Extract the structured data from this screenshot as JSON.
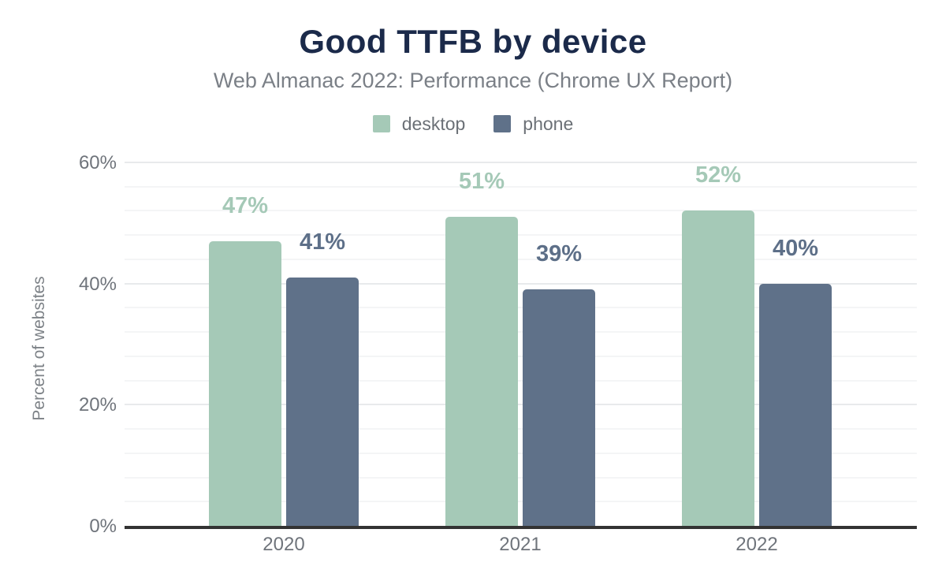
{
  "chart_data": {
    "type": "bar",
    "title": "Good TTFB by device",
    "subtitle": "Web Almanac 2022: Performance (Chrome UX Report)",
    "categories": [
      "2020",
      "2021",
      "2022"
    ],
    "series": [
      {
        "name": "desktop",
        "color": "#a5c9b7",
        "label_color": "#a5c9b7",
        "values": [
          47,
          51,
          52
        ],
        "value_labels": [
          "47%",
          "51%",
          "52%"
        ]
      },
      {
        "name": "phone",
        "color": "#5f7189",
        "label_color": "#5d6f88",
        "values": [
          41,
          39,
          40
        ],
        "value_labels": [
          "41%",
          "39%",
          "40%"
        ]
      }
    ],
    "xlabel": "",
    "ylabel": "Percent of websites",
    "ylim": [
      0,
      60
    ],
    "yticks": [
      {
        "value": 0,
        "label": "0%"
      },
      {
        "value": 20,
        "label": "20%"
      },
      {
        "value": 40,
        "label": "40%"
      },
      {
        "value": 60,
        "label": "60%"
      }
    ],
    "grid": {
      "visible": true,
      "minor_step": 4,
      "major_step": 20
    },
    "legend_position": "top"
  },
  "appearance": {
    "background": "#ffffff",
    "title_color": "#1b2a4a",
    "subtitle_color": "#7b8087",
    "tick_label_color": "#6f747b",
    "axis_title_color": "#7d8287",
    "legend_text_color": "#6b7076",
    "axis_line_color": "#333333",
    "minor_gridline_color": "#f4f5f6",
    "major_gridline_color": "#e8eaec"
  }
}
